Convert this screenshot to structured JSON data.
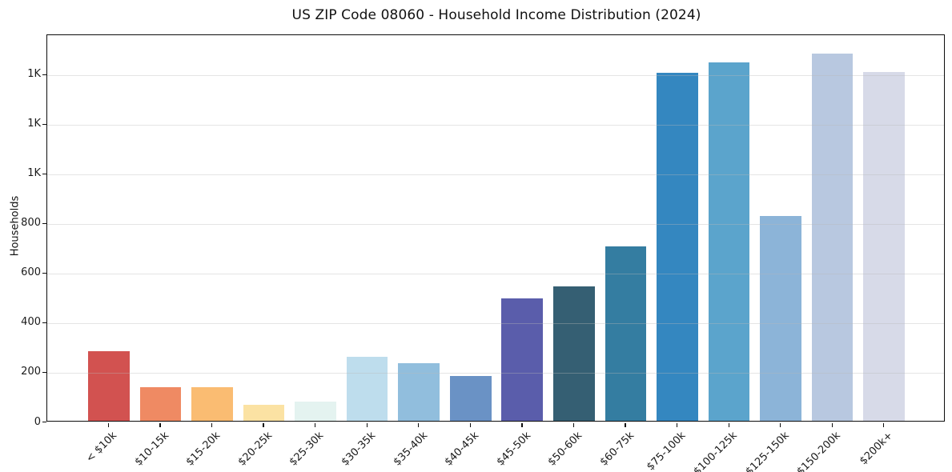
{
  "chart_data": {
    "type": "bar",
    "title": "US ZIP Code 08060 - Household Income Distribution (2024)",
    "xlabel": "",
    "ylabel": "Households",
    "categories": [
      "< $10k",
      "$10-15k",
      "$15-20k",
      "$20-25k",
      "$25-30k",
      "$30-35k",
      "$35-40k",
      "$40-45k",
      "$45-50k",
      "$50-60k",
      "$60-75k",
      "$75-100k",
      "$100-125k",
      "$125-150k",
      "$150-200k",
      "$200k+"
    ],
    "values": [
      280,
      137,
      134,
      66,
      77,
      258,
      232,
      180,
      494,
      542,
      702,
      1403,
      1445,
      826,
      1481,
      1406
    ],
    "bar_colors": [
      "#d25250",
      "#ef8a63",
      "#fabc72",
      "#fbe2a3",
      "#e4f3f0",
      "#bedded",
      "#91bedd",
      "#6a92c5",
      "#5a5dab",
      "#355f73",
      "#347da1",
      "#3487c0",
      "#5ba4cc",
      "#8cb4d8",
      "#b8c8e0",
      "#d7dae8"
    ],
    "ylim": [
      0,
      1560
    ],
    "yticks": {
      "values": [
        0,
        200,
        400,
        600,
        800,
        1000,
        1200,
        1400
      ],
      "labels": [
        "0",
        "200",
        "400",
        "600",
        "800",
        "1K",
        "1K",
        "1K"
      ]
    },
    "grid": "horizontal-over-bars",
    "legend": "none",
    "background_color": "#ffffff",
    "spine_color": "#0d0d0d",
    "grid_color": "#e8e8e8",
    "bar_width_fraction": 0.8
  }
}
